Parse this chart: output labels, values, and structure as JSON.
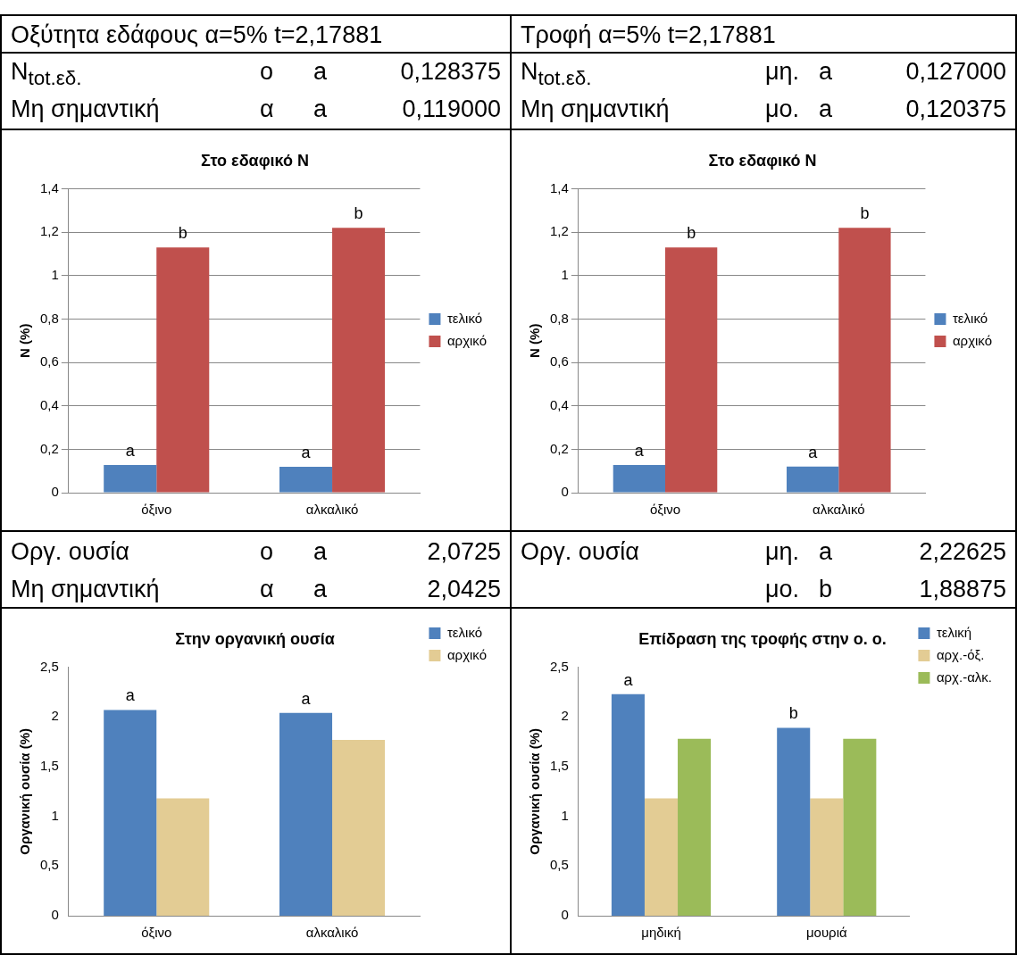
{
  "chart_data": [
    {
      "type": "other",
      "title": "Οξύτητα εδάφους α=5% t=2,17881",
      "annotations": [
        "N$_{tot.εδ.}$\tο\ta\t0,128375",
        "Μη σημαντική\tα\ta\t0,119000"
      ]
    },
    {
      "type": "other",
      "title": "Τροφή α=5% t=2,17881",
      "annotations": [
        "N$_{tot.εδ.}$\tμη.\ta\t0,127000",
        "Μη σημαντική\tμο.\ta\t0,120375"
      ]
    },
    {
      "type": "bar",
      "title": "Στο εδαφικό Ν",
      "ylabel": "N (%)",
      "categories": [
        "όξινο",
        "αλκαλικό"
      ],
      "series": [
        {
          "name": "τελικό",
          "color": "#4f81bd",
          "values": [
            0.128,
            0.119
          ],
          "value_labels": [
            "a",
            "a"
          ]
        },
        {
          "name": "αρχικό",
          "color": "#c0504d",
          "values": [
            1.13,
            1.22
          ],
          "value_labels": [
            "b",
            "b"
          ]
        }
      ],
      "ylim": [
        0,
        1.4
      ],
      "yticks": [
        0,
        {
          "value": 0.2,
          "label": "0,2"
        },
        {
          "value": 0.4,
          "label": "0,4"
        },
        {
          "value": 0.6,
          "label": "0,6"
        },
        {
          "value": 0.8,
          "label": "0,8"
        },
        1,
        {
          "value": 1.2,
          "label": "1,2"
        },
        {
          "value": 1.4,
          "label": "1,4"
        }
      ],
      "grid": "y",
      "legend": "right"
    },
    {
      "type": "bar",
      "title": "Στο εδαφικό Ν",
      "ylabel": "N (%)",
      "categories": [
        "όξινο",
        "αλκαλικό"
      ],
      "series": [
        {
          "name": "τελικό",
          "color": "#4f81bd",
          "values": [
            0.127,
            0.12
          ],
          "value_labels": [
            "a",
            "a"
          ]
        },
        {
          "name": "αρχικό",
          "color": "#c0504d",
          "values": [
            1.13,
            1.22
          ],
          "value_labels": [
            "b",
            "b"
          ]
        }
      ],
      "ylim": [
        0,
        1.4
      ],
      "yticks": [
        0,
        {
          "value": 0.2,
          "label": "0,2"
        },
        {
          "value": 0.4,
          "label": "0,4"
        },
        {
          "value": 0.6,
          "label": "0,6"
        },
        {
          "value": 0.8,
          "label": "0,8"
        },
        1,
        {
          "value": 1.2,
          "label": "1,2"
        },
        {
          "value": 1.4,
          "label": "1,4"
        }
      ],
      "grid": "y",
      "legend": "right"
    },
    {
      "type": "other",
      "annotations": [
        "Οργ. ουσία\tο\ta\t2,0725",
        "Μη σημαντική\tα\ta\t2,0425"
      ]
    },
    {
      "type": "other",
      "annotations": [
        "Οργ. ουσία\tμη.\ta\t2,22625",
        "\tμο.\tb\t1,88875"
      ]
    },
    {
      "type": "bar",
      "title": "Στην οργανική ουσία",
      "ylabel": "Οργανική ουσία (%)",
      "categories": [
        "όξινο",
        "αλκαλικό"
      ],
      "series": [
        {
          "name": "τελικό",
          "color": "#4f81bd",
          "values": [
            2.07,
            2.04
          ],
          "value_labels": [
            "a",
            "a"
          ]
        },
        {
          "name": "αρχικό",
          "color": "#e3cc94",
          "values": [
            1.18,
            1.77
          ]
        }
      ],
      "ylim": [
        0,
        2.5
      ],
      "yticks": [
        0,
        {
          "value": 0.5,
          "label": "0,5"
        },
        1,
        {
          "value": 1.5,
          "label": "1,5"
        },
        2,
        {
          "value": 2.5,
          "label": "2,5"
        }
      ],
      "legend": "top right"
    },
    {
      "type": "bar",
      "title": "Επίδραση της τροφής στην ο. ο.",
      "ylabel": "Οργανική ουσία (%)",
      "categories": [
        "μηδική",
        "μουριά"
      ],
      "series": [
        {
          "name": "τελική",
          "color": "#4f81bd",
          "values": [
            2.23,
            1.89
          ],
          "value_labels": [
            "a",
            "b"
          ]
        },
        {
          "name": "αρχ.-όξ.",
          "color": "#e3cc94",
          "values": [
            1.18,
            1.18
          ]
        },
        {
          "name": "αρχ.-αλκ.",
          "color": "#9bbb59",
          "values": [
            1.78,
            1.78
          ]
        }
      ],
      "ylim": [
        0,
        2.5
      ],
      "yticks": [
        0,
        {
          "value": 0.5,
          "label": "0,5"
        },
        1,
        {
          "value": 1.5,
          "label": "1,5"
        },
        2,
        {
          "value": 2.5,
          "label": "2,5"
        }
      ],
      "legend": "top right"
    }
  ]
}
